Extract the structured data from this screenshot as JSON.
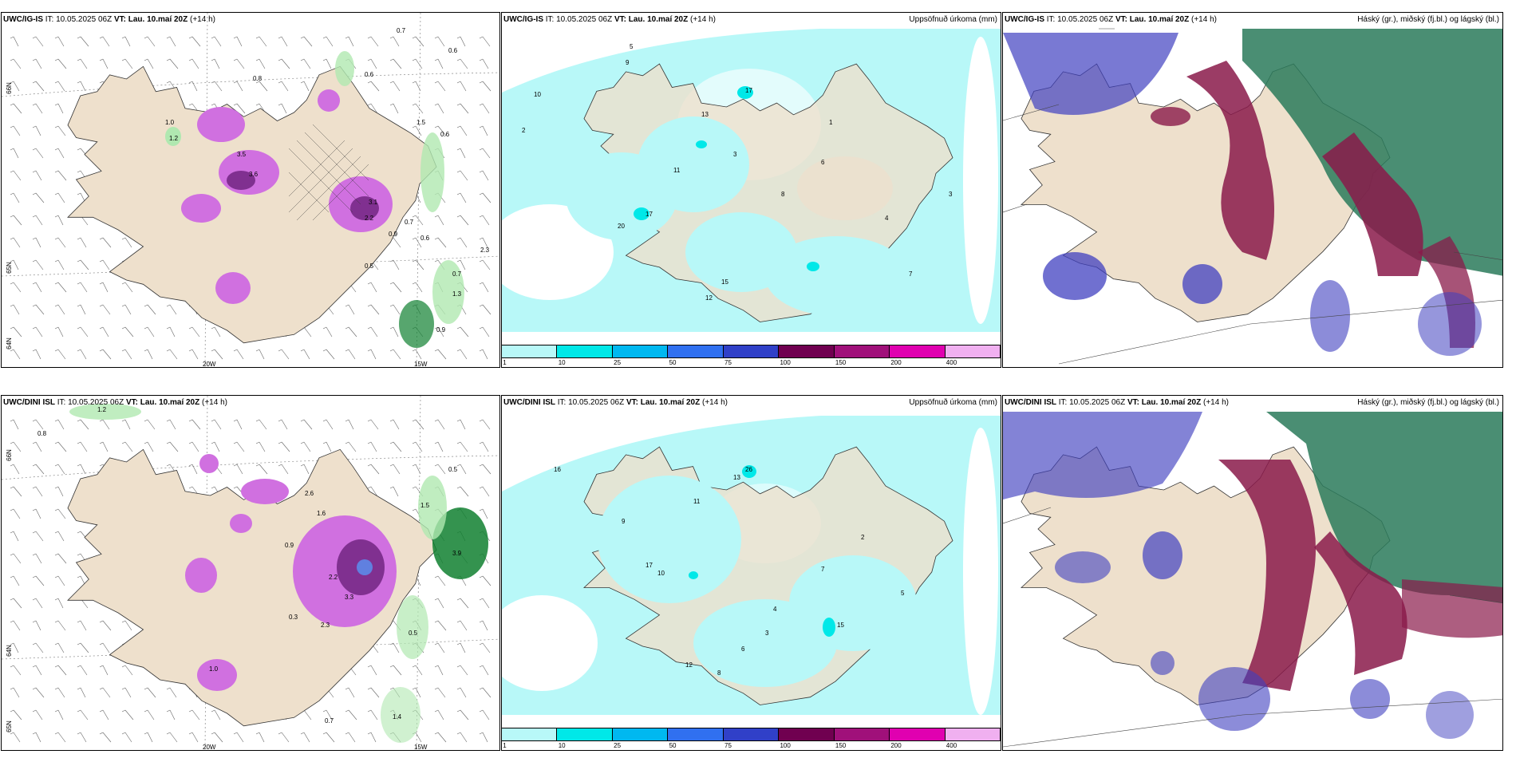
{
  "rows": [
    {
      "model": "UWC/IG-IS",
      "it_label": "IT:",
      "it_value": "10.05.2025 06Z",
      "vt_label": "VT:",
      "vt_value": "Lau. 10.maí 20Z",
      "lead": "(+14 h)"
    },
    {
      "model": "UWC/DINI ISL",
      "it_label": "IT:",
      "it_value": "10.05.2025 06Z",
      "vt_label": "VT:",
      "vt_value": "Lau. 10.maí 20Z",
      "lead": "(+14 h)"
    }
  ],
  "precip_title": "Uppsöfnuð úrkoma (mm)",
  "cloud_title": "Háský (gr.), miðský (fj.bl.) og lágský (bl.)",
  "axis_labels": {
    "lat66": "66N",
    "lat64": "64N",
    "lat65": "65N",
    "lon20": "20W",
    "lon15": "15W"
  },
  "colorbar": {
    "ticks": [
      "1",
      "10",
      "25",
      "50",
      "75",
      "100",
      "150",
      "200",
      "400"
    ],
    "colors": [
      "#b8f8f8",
      "#00e8e8",
      "#00b8f0",
      "#3070f0",
      "#3040c8",
      "#700050",
      "#a0107a",
      "#e000b0",
      "#f0b0f0"
    ]
  },
  "colors": {
    "land": "#eee0cc",
    "precip_light": "#b8f8f8",
    "precip_mid": "#00e8e8",
    "shower_pink": "#d070e0",
    "shower_dark": "#803090",
    "green_light": "#b0e8b0",
    "green_dark": "#108030",
    "cloud_high": "#2a7a5a",
    "cloud_mid": "#8a1a4a",
    "cloud_low": "#4040c0"
  },
  "panel_a_values": [
    {
      "t": "0.7"
    },
    {
      "t": "0.6"
    },
    {
      "t": "0.6"
    },
    {
      "t": "0.8"
    },
    {
      "t": "1.0"
    },
    {
      "t": "1.2"
    },
    {
      "t": "3.5"
    },
    {
      "t": "3.6"
    },
    {
      "t": "1.5"
    },
    {
      "t": "0.6"
    },
    {
      "t": "3.1"
    },
    {
      "t": "2.2"
    },
    {
      "t": "0.9"
    },
    {
      "t": "0.7"
    },
    {
      "t": "0.6"
    },
    {
      "t": "0.5"
    },
    {
      "t": "0.7"
    },
    {
      "t": "1.3"
    },
    {
      "t": "0.9"
    },
    {
      "t": "2.3"
    }
  ],
  "panel_b_values": [
    {
      "t": "5"
    },
    {
      "t": "9"
    },
    {
      "t": "10"
    },
    {
      "t": "2"
    },
    {
      "t": "17"
    },
    {
      "t": "13"
    },
    {
      "t": "3"
    },
    {
      "t": "1"
    },
    {
      "t": "6"
    },
    {
      "t": "20"
    },
    {
      "t": "17"
    },
    {
      "t": "15"
    },
    {
      "t": "11"
    },
    {
      "t": "12"
    },
    {
      "t": "8"
    },
    {
      "t": "4"
    },
    {
      "t": "7"
    },
    {
      "t": "3"
    }
  ],
  "panel_d_values": [
    {
      "t": "0.8"
    },
    {
      "t": "1.2"
    },
    {
      "t": "0.5"
    },
    {
      "t": "1.5"
    },
    {
      "t": "2.6"
    },
    {
      "t": "1.6"
    },
    {
      "t": "0.9"
    },
    {
      "t": "2.2"
    },
    {
      "t": "3.3"
    },
    {
      "t": "2.3"
    },
    {
      "t": "0.3"
    },
    {
      "t": "0.5"
    },
    {
      "t": "0.7"
    },
    {
      "t": "1.0"
    },
    {
      "t": "1.4"
    },
    {
      "t": "3.9"
    }
  ],
  "panel_e_values": [
    {
      "t": "16"
    },
    {
      "t": "26"
    },
    {
      "t": "13"
    },
    {
      "t": "11"
    },
    {
      "t": "9"
    },
    {
      "t": "3"
    },
    {
      "t": "17"
    },
    {
      "t": "10"
    },
    {
      "t": "15"
    },
    {
      "t": "12"
    },
    {
      "t": "8"
    },
    {
      "t": "6"
    },
    {
      "t": "4"
    },
    {
      "t": "7"
    },
    {
      "t": "2"
    },
    {
      "t": "5"
    }
  ]
}
